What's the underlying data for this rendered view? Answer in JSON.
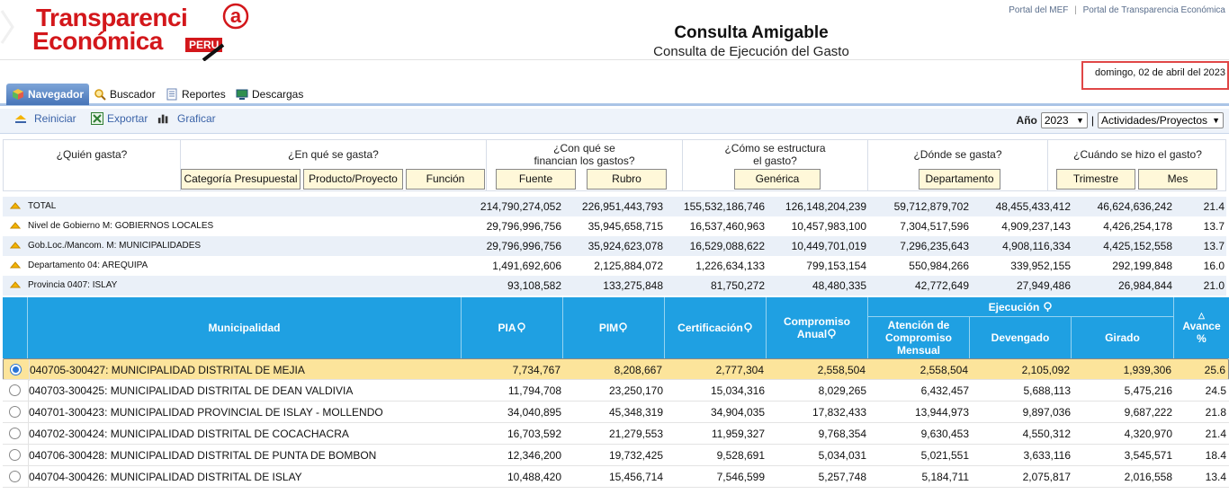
{
  "header": {
    "logo_line1": "Transparenci",
    "logo_a": "a",
    "logo_line2": "Económica",
    "logo_peru": "PERU",
    "title": "Consulta Amigable",
    "subtitle": "Consulta de Ejecución del Gasto",
    "links": [
      "Portal del MEF",
      "Portal de Transparencia Económica"
    ],
    "link_separator": "|"
  },
  "date": "domingo, 02 de abril del 2023",
  "tabs": [
    {
      "label": "Navegador",
      "active": true,
      "icon": "cube-icon"
    },
    {
      "label": "Buscador",
      "active": false,
      "icon": "magnifier-icon"
    },
    {
      "label": "Reportes",
      "active": false,
      "icon": "document-icon"
    },
    {
      "label": "Descargas",
      "active": false,
      "icon": "monitor-icon"
    }
  ],
  "toolbar": {
    "reiniciar": "Reiniciar",
    "exportar": "Exportar",
    "graficar": "Graficar",
    "anio_label": "Año",
    "anio_value": "2023",
    "separator": "|",
    "tipo_value": "Actividades/Proyectos"
  },
  "questions": [
    {
      "title": "¿Quién gasta?",
      "buttons": []
    },
    {
      "title": "¿En qué se gasta?",
      "buttons": [
        "Categoría Presupuestal",
        "Producto/Proyecto",
        "Función"
      ]
    },
    {
      "title_l1": "¿Con qué se",
      "title_l2": "financian los gastos?",
      "buttons": [
        "Fuente",
        "Rubro"
      ]
    },
    {
      "title_l1": "¿Cómo se estructura",
      "title_l2": "el gasto?",
      "buttons": [
        "Genérica"
      ]
    },
    {
      "title": "¿Dónde se gasta?",
      "buttons": [
        "Departamento"
      ]
    },
    {
      "title": "¿Cuándo se hizo el gasto?",
      "buttons": [
        "Trimestre",
        "Mes"
      ]
    }
  ],
  "summary": [
    {
      "label": "TOTAL",
      "values": [
        "214,790,274,052",
        "226,951,443,793",
        "155,532,186,746",
        "126,148,204,239",
        "59,712,879,702",
        "48,455,433,412",
        "46,624,636,242",
        "21.4"
      ]
    },
    {
      "label": "Nivel de Gobierno M: GOBIERNOS LOCALES",
      "values": [
        "29,796,996,756",
        "35,945,658,715",
        "16,537,460,963",
        "10,457,983,100",
        "7,304,517,596",
        "4,909,237,143",
        "4,426,254,178",
        "13.7"
      ]
    },
    {
      "label": "Gob.Loc./Mancom. M: MUNICIPALIDADES",
      "values": [
        "29,796,996,756",
        "35,924,623,078",
        "16,529,088,622",
        "10,449,701,019",
        "7,296,235,643",
        "4,908,116,334",
        "4,425,152,558",
        "13.7"
      ]
    },
    {
      "label": "Departamento 04: AREQUIPA",
      "values": [
        "1,491,692,606",
        "2,125,884,072",
        "1,226,634,133",
        "799,153,154",
        "550,984,266",
        "339,952,155",
        "292,199,848",
        "16.0"
      ]
    },
    {
      "label": "Provincia 0407: ISLAY",
      "values": [
        "93,108,582",
        "133,275,848",
        "81,750,272",
        "48,480,335",
        "42,772,649",
        "27,949,486",
        "26,984,844",
        "21.0"
      ]
    }
  ],
  "table": {
    "headers": {
      "municipalidad": "Municipalidad",
      "pia": "PIA",
      "pim": "PIM",
      "certificacion": "Certificación",
      "compromiso_l1": "Compromiso",
      "compromiso_l2": "Anual",
      "ejecucion": "Ejecución",
      "atencion_l1": "Atención de",
      "atencion_l2": "Compromiso",
      "atencion_l3": "Mensual",
      "devengado": "Devengado",
      "girado": "Girado",
      "avance_l1": "Avance",
      "avance_l2": "%"
    },
    "rows": [
      {
        "name": "040705-300427: MUNICIPALIDAD DISTRITAL DE MEJIA",
        "selected": true,
        "values": [
          "7,734,767",
          "8,208,667",
          "2,777,304",
          "2,558,504",
          "2,558,504",
          "2,105,092",
          "1,939,306",
          "25.6"
        ]
      },
      {
        "name": "040703-300425: MUNICIPALIDAD DISTRITAL DE DEAN VALDIVIA",
        "selected": false,
        "values": [
          "11,794,708",
          "23,250,170",
          "15,034,316",
          "8,029,265",
          "6,432,457",
          "5,688,113",
          "5,475,216",
          "24.5"
        ]
      },
      {
        "name": "040701-300423: MUNICIPALIDAD PROVINCIAL DE ISLAY - MOLLENDO",
        "selected": false,
        "values": [
          "34,040,895",
          "45,348,319",
          "34,904,035",
          "17,832,433",
          "13,944,973",
          "9,897,036",
          "9,687,222",
          "21.8"
        ]
      },
      {
        "name": "040702-300424: MUNICIPALIDAD DISTRITAL DE COCACHACRA",
        "selected": false,
        "values": [
          "16,703,592",
          "21,279,553",
          "11,959,327",
          "9,768,354",
          "9,630,453",
          "4,550,312",
          "4,320,970",
          "21.4"
        ]
      },
      {
        "name": "040706-300428: MUNICIPALIDAD DISTRITAL DE PUNTA DE BOMBON",
        "selected": false,
        "values": [
          "12,346,200",
          "19,732,425",
          "9,528,691",
          "5,034,031",
          "5,021,551",
          "3,633,116",
          "3,545,571",
          "18.4"
        ]
      },
      {
        "name": "040704-300426: MUNICIPALIDAD DISTRITAL DE ISLAY",
        "selected": false,
        "values": [
          "10,488,420",
          "15,456,714",
          "7,546,599",
          "5,257,748",
          "5,184,711",
          "2,075,817",
          "2,016,558",
          "13.4"
        ]
      }
    ]
  },
  "colors": {
    "brand_red": "#d3171b",
    "table_header": "#1fa0e2",
    "selected_row": "#fce49b",
    "tab_active": "#4674b8",
    "button_bg": "#fff8d9"
  }
}
